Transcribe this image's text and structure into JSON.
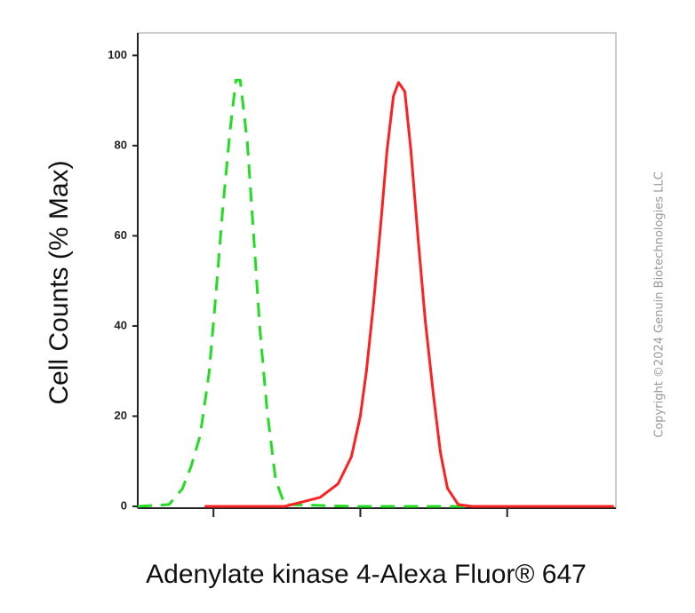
{
  "chart_data": {
    "type": "line",
    "xlabel": "Adenylate kinase 4-Alexa Fluor® 647",
    "ylabel": "Cell Counts (% Max)",
    "annotation": "Copyright ©2024 Genuin Biotechnologies LLC",
    "xscale": "log",
    "xlim": [
      30.5,
      55000
    ],
    "xticks": [
      100,
      1000,
      10000
    ],
    "ylim": [
      -0.4,
      105
    ],
    "yticks": [
      0,
      20,
      40,
      60,
      80,
      100
    ],
    "grid": false,
    "series": [
      {
        "color": "#22dd22",
        "dashed": true,
        "x": [
          30.5,
          49.8,
          61.4,
          70.5,
          81.1,
          93.3,
          104,
          115,
          129,
          142,
          152,
          170,
          187,
          207,
          231,
          265,
          305,
          933,
          3770,
          15200,
          53300
        ],
        "values": [
          0,
          0.4,
          3.9,
          8.9,
          15.7,
          29.5,
          47.2,
          65,
          82.7,
          94.5,
          94.5,
          80.7,
          61,
          39.4,
          21.7,
          5.9,
          0.4,
          0,
          0,
          0,
          0
        ]
      },
      {
        "color": "#ff2020",
        "dashed": false,
        "x": [
          87,
          305,
          404,
          533,
          705,
          869,
          1000,
          1100,
          1230,
          1380,
          1520,
          1680,
          1820,
          2010,
          2210,
          2480,
          2770,
          3140,
          3510,
          3920,
          4640,
          5730,
          53300
        ],
        "values": [
          0,
          0,
          1,
          2,
          5,
          11,
          20,
          30,
          45,
          63,
          79,
          91,
          94,
          92,
          79,
          59,
          41,
          25,
          12,
          4,
          0.4,
          0,
          0
        ]
      }
    ]
  }
}
